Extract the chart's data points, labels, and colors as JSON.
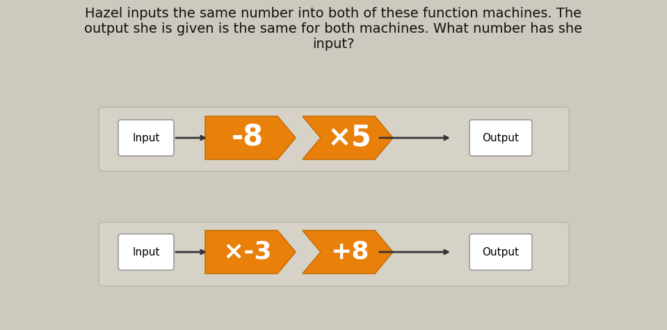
{
  "title_line1": "Hazel inputs the same number into both of these function machines. The",
  "title_line2": "output she is given is the same for both machines. What number has she",
  "title_line3": "input?",
  "page_bg": "#ccc9be",
  "panel_bg": "#d6d2c8",
  "panel_edge": "#c0bcb0",
  "orange_color": "#E8800A",
  "orange_edge": "#c86e08",
  "white": "#ffffff",
  "black": "#111111",
  "grey_edge": "#999999",
  "row1_ops": [
    "-8",
    "×5"
  ],
  "row2_ops": [
    "×-3",
    "+8"
  ],
  "input_label": "Input",
  "output_label": "Output",
  "title_fontsize": 14,
  "label_fontsize": 11,
  "op_fontsize_row1": 30,
  "op_fontsize_row2": 26,
  "fig_w": 9.59,
  "fig_h": 4.74,
  "dpi": 100
}
